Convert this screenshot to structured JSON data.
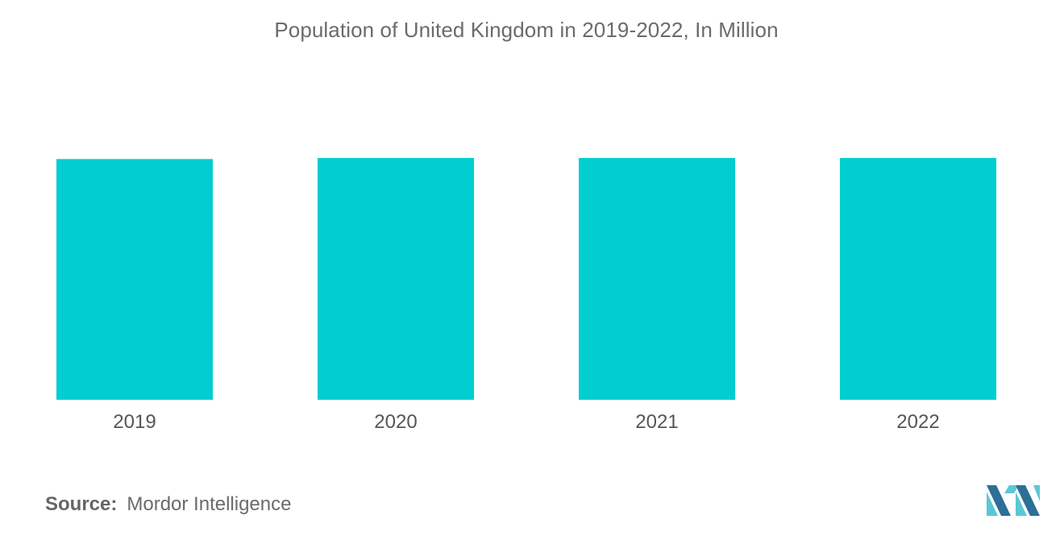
{
  "title": "Population of United Kingdom in 2019-2022, In Million",
  "source": {
    "label": "Source:",
    "text": "Mordor Intelligence"
  },
  "colors": {
    "bar": "#00CED1",
    "title": "#6b6b6b",
    "tick": "#555555",
    "logo_light": "#5bc7d6",
    "logo_dark": "#2c6f97"
  },
  "logo": {
    "icon": "mordor-intelligence-logo-icon"
  },
  "chart_data": {
    "type": "bar",
    "categories": [
      "2019",
      "2020",
      "2021",
      "2022"
    ],
    "values": [
      66.8,
      67.1,
      67.1,
      67.1
    ],
    "title": "Population of United Kingdom in 2019-2022, In Million",
    "xlabel": "",
    "ylabel": "",
    "ylim": [
      0,
      67.1
    ],
    "grid": false,
    "legend": "none",
    "value_labels_shown": false
  }
}
